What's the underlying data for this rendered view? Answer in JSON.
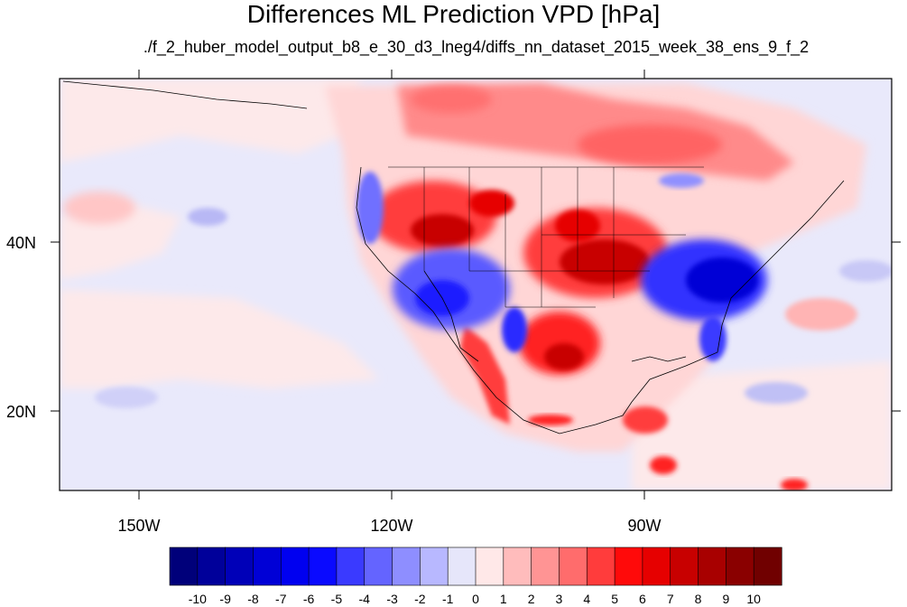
{
  "title": "Differences ML Prediction VPD [hPa]",
  "subtitle": "./f_2_huber_model_output_b8_e_30_d3_lneg4/diffs_nn_dataset_2015_week_38_ens_9_f_2",
  "axes": {
    "lon_labels": [
      "150W",
      "120W",
      "90W"
    ],
    "lat_labels": [
      "40N",
      "20N"
    ]
  },
  "colorbar": {
    "labels": [
      "-10",
      "-9",
      "-8",
      "-7",
      "-6",
      "-5",
      "-4",
      "-3",
      "-2",
      "-1",
      "0",
      "1",
      "2",
      "3",
      "4",
      "5",
      "6",
      "7",
      "8",
      "9",
      "10"
    ],
    "colors": [
      "#00007a",
      "#00009a",
      "#0000b8",
      "#0000d6",
      "#0000f0",
      "#0a0aff",
      "#3a3aff",
      "#6464ff",
      "#8e8eff",
      "#b8b8ff",
      "#e6e6fa",
      "#ffe8e8",
      "#ffbcbc",
      "#ff9494",
      "#ff6c6c",
      "#ff3c3c",
      "#ff0a0a",
      "#e60000",
      "#c80000",
      "#a80000",
      "#8a0000",
      "#700000"
    ]
  }
}
